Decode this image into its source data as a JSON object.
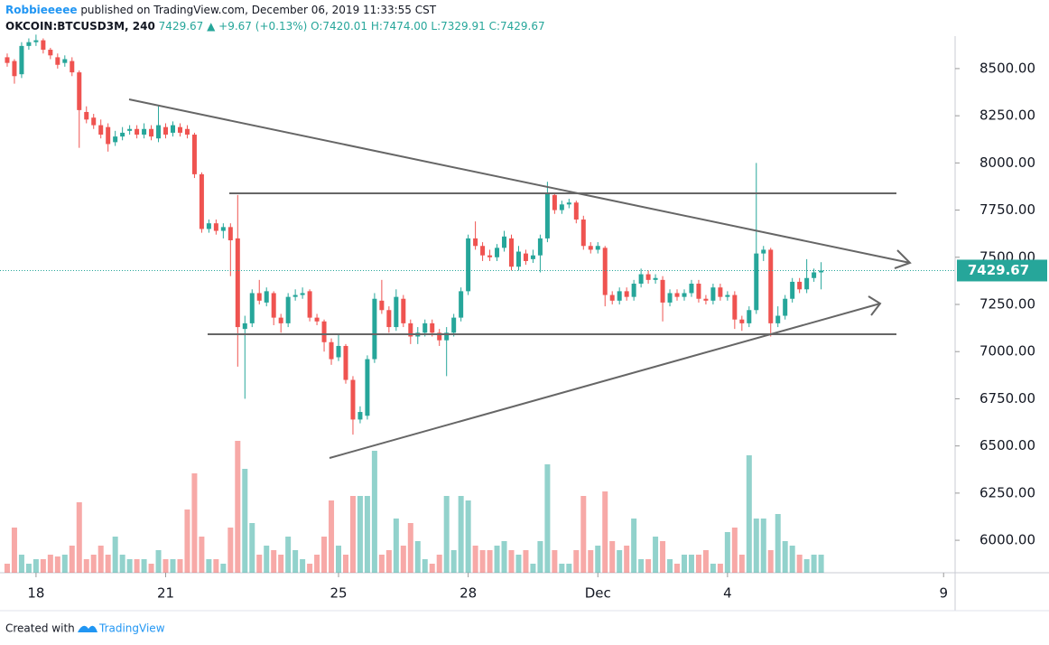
{
  "header": {
    "author": "Robbieeeee",
    "published": "published on TradingView.com, December 06, 2019 11:33:55 CST",
    "symbol": "OKCOIN:BTCUSD3M, 240",
    "last": "7429.67",
    "change": "▲ +9.67 (+0.13%)",
    "o": "O:7420.01",
    "h": "H:7474.00",
    "l": "L:7329.91",
    "c": "C:7429.67"
  },
  "footer": {
    "created": "Created with",
    "brand": "TradingView"
  },
  "chart_data": {
    "type": "candlestick",
    "up_color": "#26a69a",
    "down_color": "#ef5350",
    "categories": [
      null,
      null,
      null,
      null,
      null,
      null,
      null,
      null,
      null,
      null,
      null,
      null,
      null,
      null,
      null,
      null,
      null,
      null,
      null,
      null,
      null,
      null,
      null,
      null,
      null,
      null,
      null,
      null,
      null,
      null,
      null,
      null,
      null,
      null,
      null,
      null,
      null,
      null,
      null,
      null,
      null,
      null,
      null,
      null,
      null,
      null,
      null,
      null,
      null,
      null,
      null,
      null,
      null,
      null,
      null,
      null,
      null,
      null,
      null,
      null,
      null,
      null,
      null,
      null,
      null,
      null,
      null,
      null,
      null,
      null,
      null,
      null,
      null,
      null,
      null,
      null,
      null,
      null,
      null,
      null,
      null,
      null,
      null,
      null,
      null,
      null,
      null,
      null,
      null,
      null,
      null,
      null,
      null,
      null,
      null,
      null,
      null,
      null,
      null,
      null,
      null,
      null,
      null,
      null,
      null,
      null,
      null,
      null,
      null,
      null,
      null,
      null,
      null,
      null
    ],
    "open": [
      8560,
      8540,
      8470,
      8620,
      8640,
      8650,
      8600,
      8560,
      8530,
      8540,
      8480,
      8270,
      8240,
      8200,
      8190,
      8110,
      8140,
      8170,
      8180,
      8150,
      8180,
      8130,
      8190,
      8160,
      8190,
      8180,
      8150,
      7940,
      7650,
      7680,
      7640,
      7660,
      7600,
      7120,
      7150,
      7310,
      7260,
      7310,
      7180,
      7150,
      7290,
      7300,
      7320,
      7180,
      7160,
      7050,
      6970,
      7030,
      6850,
      6640,
      6660,
      6960,
      7270,
      7220,
      7130,
      7280,
      7150,
      7080,
      7100,
      7150,
      7100,
      7060,
      7100,
      7180,
      7320,
      7600,
      7560,
      7510,
      7500,
      7550,
      7600,
      7450,
      7520,
      7490,
      7510,
      7600,
      7830,
      7750,
      7780,
      7790,
      7700,
      7560,
      7540,
      7550,
      7300,
      7270,
      7320,
      7290,
      7360,
      7410,
      7380,
      7380,
      7260,
      7310,
      7290,
      7310,
      7360,
      7280,
      7270,
      7340,
      7290,
      7300,
      7170,
      7150,
      7220,
      7520,
      7540,
      7150,
      7190,
      7280,
      7370,
      7330,
      7390,
      7420.01
    ],
    "high": [
      8580,
      8550,
      8640,
      8660,
      8680,
      8660,
      8610,
      8580,
      8570,
      8560,
      8490,
      8300,
      8260,
      8230,
      8210,
      8170,
      8190,
      8200,
      8200,
      8210,
      8200,
      8300,
      8210,
      8220,
      8210,
      8200,
      8160,
      7950,
      7700,
      7700,
      7680,
      7680,
      7830,
      7190,
      7330,
      7380,
      7340,
      7320,
      7200,
      7310,
      7330,
      7340,
      7330,
      7200,
      7170,
      7070,
      7090,
      7040,
      6870,
      6710,
      6980,
      7310,
      7380,
      7240,
      7330,
      7300,
      7170,
      7130,
      7170,
      7170,
      7120,
      7130,
      7200,
      7340,
      7620,
      7690,
      7580,
      7540,
      7570,
      7640,
      7620,
      7560,
      7540,
      7540,
      7620,
      7900,
      7840,
      7800,
      7810,
      7800,
      7720,
      7580,
      7580,
      7560,
      7320,
      7340,
      7340,
      7380,
      7440,
      7430,
      7410,
      7400,
      7330,
      7330,
      7330,
      7380,
      7380,
      7300,
      7360,
      7360,
      7320,
      7320,
      7190,
      7240,
      8000,
      7560,
      7550,
      7240,
      7300,
      7390,
      7390,
      7490,
      7440,
      7474
    ],
    "low": [
      8510,
      8420,
      8450,
      8600,
      8620,
      8580,
      8550,
      8500,
      8510,
      8460,
      8080,
      8210,
      8180,
      8130,
      8060,
      8090,
      8120,
      8150,
      8130,
      8130,
      8120,
      8110,
      8130,
      8140,
      8140,
      8130,
      7920,
      7630,
      7630,
      7620,
      7600,
      7400,
      6920,
      6750,
      7130,
      7250,
      7240,
      7140,
      7100,
      7130,
      7270,
      7280,
      7160,
      7140,
      7000,
      6930,
      6950,
      6830,
      6560,
      6620,
      6640,
      6940,
      7200,
      7100,
      7110,
      7130,
      7040,
      7040,
      7080,
      7080,
      7030,
      6870,
      7080,
      7160,
      7300,
      7540,
      7480,
      7480,
      7480,
      7530,
      7430,
      7430,
      7460,
      7470,
      7420,
      7580,
      7730,
      7730,
      7760,
      7680,
      7540,
      7520,
      7520,
      7240,
      7250,
      7250,
      7270,
      7270,
      7340,
      7360,
      7360,
      7160,
      7240,
      7270,
      7270,
      7290,
      7260,
      7250,
      7250,
      7270,
      7270,
      7120,
      7110,
      7130,
      7200,
      7480,
      7080,
      7130,
      7170,
      7260,
      7310,
      7310,
      7370,
      7329.91
    ],
    "close": [
      8530,
      8460,
      8620,
      8640,
      8650,
      8600,
      8570,
      8520,
      8550,
      8480,
      8280,
      8230,
      8200,
      8150,
      8100,
      8140,
      8160,
      8180,
      8150,
      8180,
      8140,
      8200,
      8150,
      8200,
      8160,
      8150,
      7940,
      7650,
      7680,
      7640,
      7660,
      7590,
      7130,
      7150,
      7310,
      7270,
      7320,
      7180,
      7150,
      7290,
      7300,
      7310,
      7180,
      7160,
      7050,
      6960,
      7030,
      6850,
      6640,
      6680,
      6960,
      7280,
      7220,
      7130,
      7290,
      7150,
      7080,
      7100,
      7150,
      7100,
      7060,
      7100,
      7180,
      7320,
      7600,
      7560,
      7510,
      7500,
      7550,
      7610,
      7450,
      7530,
      7480,
      7510,
      7600,
      7840,
      7750,
      7780,
      7790,
      7700,
      7560,
      7540,
      7560,
      7300,
      7270,
      7320,
      7290,
      7360,
      7410,
      7380,
      7390,
      7260,
      7310,
      7290,
      7310,
      7360,
      7280,
      7270,
      7340,
      7290,
      7300,
      7170,
      7150,
      7220,
      7520,
      7540,
      7150,
      7190,
      7280,
      7370,
      7330,
      7390,
      7420,
      7429.67
    ],
    "volume": [
      10,
      50,
      20,
      10,
      15,
      15,
      20,
      18,
      20,
      30,
      78,
      15,
      20,
      30,
      20,
      40,
      20,
      15,
      15,
      15,
      10,
      25,
      15,
      15,
      15,
      70,
      110,
      40,
      15,
      15,
      10,
      50,
      146,
      115,
      55,
      20,
      30,
      25,
      20,
      40,
      25,
      15,
      10,
      20,
      40,
      80,
      30,
      20,
      85,
      85,
      85,
      135,
      20,
      25,
      60,
      30,
      55,
      35,
      15,
      10,
      20,
      85,
      25,
      85,
      80,
      30,
      25,
      25,
      30,
      35,
      25,
      20,
      25,
      10,
      35,
      120,
      25,
      10,
      10,
      25,
      85,
      25,
      30,
      90,
      35,
      25,
      30,
      60,
      15,
      15,
      40,
      35,
      15,
      10,
      20,
      20,
      20,
      25,
      10,
      10,
      45,
      50,
      20,
      130,
      60,
      60,
      25,
      65,
      35,
      30,
      20,
      15,
      20,
      20
    ],
    "volume_lim": [
      0,
      146
    ],
    "xlim": [
      -1,
      131.6
    ],
    "xticks": [
      {
        "value": 4,
        "label": "18"
      },
      {
        "value": 22,
        "label": "21"
      },
      {
        "value": 46,
        "label": "25"
      },
      {
        "value": 64,
        "label": "28"
      },
      {
        "value": 82,
        "label": "Dec"
      },
      {
        "value": 100,
        "label": "4"
      },
      {
        "value": 130,
        "label": "9"
      }
    ],
    "ylim": [
      5828,
      8672
    ],
    "yticks": [
      {
        "value": 6000,
        "label": "6000.00"
      },
      {
        "value": 6250,
        "label": "6250.00"
      },
      {
        "value": 6500,
        "label": "6500.00"
      },
      {
        "value": 6750,
        "label": "6750.00"
      },
      {
        "value": 7000,
        "label": "7000.00"
      },
      {
        "value": 7250,
        "label": "7250.00"
      },
      {
        "value": 7500,
        "label": "7500.00"
      },
      {
        "value": 7750,
        "label": "7750.00"
      },
      {
        "value": 8000,
        "label": "8000.00"
      },
      {
        "value": 8250,
        "label": "8250.00"
      },
      {
        "value": 8500,
        "label": "8500.00"
      }
    ]
  }
}
